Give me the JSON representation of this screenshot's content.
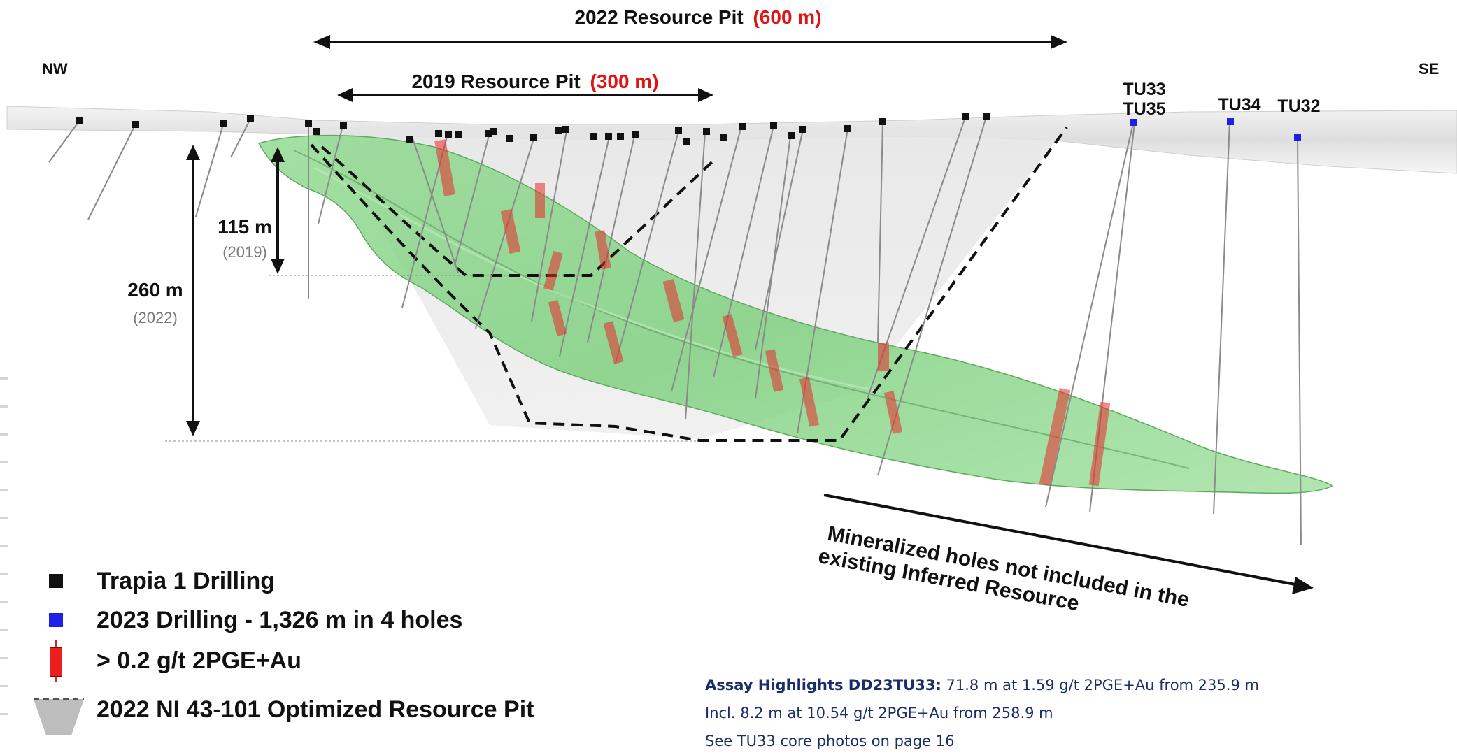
{
  "diagram": {
    "orientation": {
      "left": "NW",
      "right": "SE"
    },
    "pit_2022": {
      "label": "2022 Resource Pit",
      "length": "(600 m)"
    },
    "pit_2019": {
      "label": "2019 Resource Pit",
      "length": "(300 m)"
    },
    "depth_2019": {
      "value": "115 m",
      "year": "(2019)"
    },
    "depth_2022": {
      "value": "260 m",
      "year": "(2022)"
    },
    "holes": {
      "tu33": "TU33",
      "tu35": "TU35",
      "tu34": "TU34",
      "tu32": "TU32"
    },
    "annotation": {
      "line1": "Mineralized holes not included in the",
      "line2": "existing Inferred Resource"
    },
    "colors": {
      "mineral_body": "#7fd47f",
      "intercept": "#e01414",
      "new_hole": "#1f1fe8",
      "old_hole": "#111111"
    }
  },
  "legend": [
    {
      "icon": "black-square-icon",
      "label": "Trapia 1 Drilling"
    },
    {
      "icon": "blue-square-icon",
      "label": "2023 Drilling - 1,326 m in 4 holes"
    },
    {
      "icon": "red-bar-icon",
      "label": "> 0.2 g/t 2PGE+Au"
    },
    {
      "icon": "pit-shape-icon",
      "label": "2022 NI 43-101 Optimized Resource Pit"
    }
  ],
  "assay": {
    "heading": "Assay Highlights DD23TU33:",
    "line1": " 71.8 m at 1.59 g/t 2PGE+Au from 235.9 m",
    "line2": "Incl. 8.2 m at 10.54 g/t 2PGE+Au from 258.9 m",
    "line3": "See TU33 core photos on page 16"
  }
}
